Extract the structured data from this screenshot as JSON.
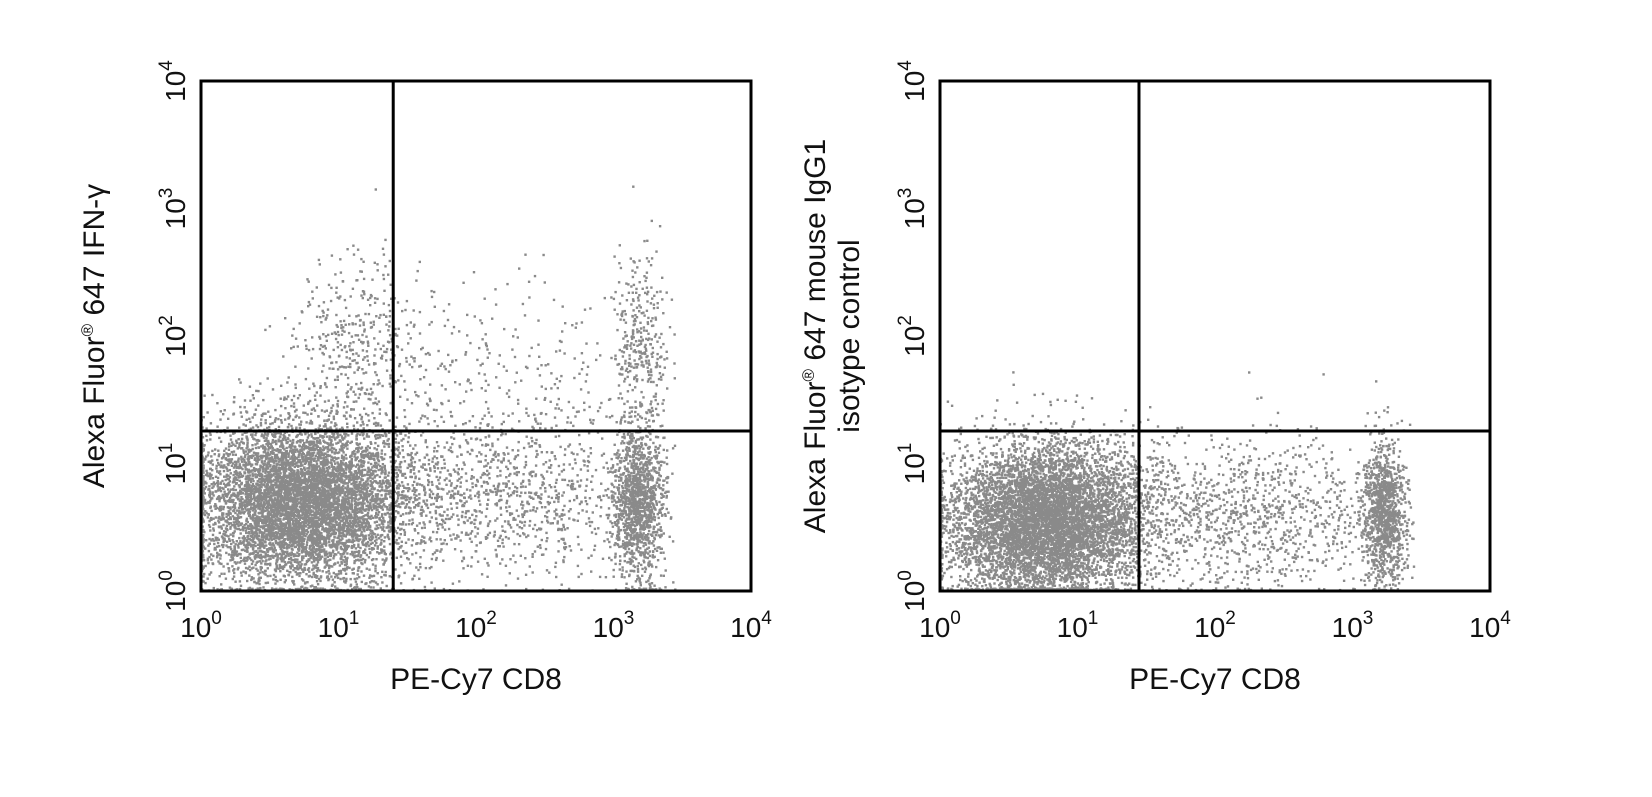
{
  "chart_data": [
    {
      "type": "scatter",
      "xlabel": "PE-Cy7 CD8",
      "ylabel_lines": [
        [
          {
            "text": "Alexa Fluor"
          },
          {
            "sup": "®"
          },
          {
            "text": " 647 IFN-γ"
          }
        ]
      ],
      "x_scale": "log",
      "y_scale": "log",
      "xlim": [
        1,
        10000
      ],
      "ylim": [
        1,
        10000
      ],
      "x_ticks": [
        {
          "base": "10",
          "exp": "0"
        },
        {
          "base": "10",
          "exp": "1"
        },
        {
          "base": "10",
          "exp": "2"
        },
        {
          "base": "10",
          "exp": "3"
        },
        {
          "base": "10",
          "exp": "4"
        }
      ],
      "y_ticks": [
        {
          "base": "10",
          "exp": "0"
        },
        {
          "base": "10",
          "exp": "1"
        },
        {
          "base": "10",
          "exp": "2"
        },
        {
          "base": "10",
          "exp": "3"
        },
        {
          "base": "10",
          "exp": "4"
        }
      ],
      "gate": {
        "x": 25,
        "y": 18
      },
      "grid": false,
      "point_color": "#8a8a8a",
      "populations": [
        {
          "center": [
            5.5,
            5
          ],
          "spread": [
            0.38,
            0.32
          ],
          "count": 7000
        },
        {
          "center": [
            1500,
            5
          ],
          "spread": [
            0.09,
            0.3
          ],
          "count": 1300
        },
        {
          "center": [
            150,
            6
          ],
          "spread": [
            0.6,
            0.35
          ],
          "count": 1200
        },
        {
          "center": [
            14,
            90
          ],
          "spread": [
            0.22,
            0.33
          ],
          "count": 380
        },
        {
          "center": [
            1600,
            90
          ],
          "spread": [
            0.1,
            0.35
          ],
          "count": 300
        },
        {
          "center": [
            200,
            70
          ],
          "spread": [
            0.6,
            0.3
          ],
          "count": 220
        }
      ]
    },
    {
      "type": "scatter",
      "xlabel": "PE-Cy7 CD8",
      "ylabel_lines": [
        [
          {
            "text": "Alexa Fluor"
          },
          {
            "sup": "®"
          },
          {
            "text": " 647 mouse IgG1"
          }
        ],
        [
          {
            "text": "isotype control"
          }
        ]
      ],
      "x_scale": "log",
      "y_scale": "log",
      "xlim": [
        1,
        10000
      ],
      "ylim": [
        1,
        10000
      ],
      "x_ticks": [
        {
          "base": "10",
          "exp": "0"
        },
        {
          "base": "10",
          "exp": "1"
        },
        {
          "base": "10",
          "exp": "2"
        },
        {
          "base": "10",
          "exp": "3"
        },
        {
          "base": "10",
          "exp": "4"
        }
      ],
      "y_ticks": [
        {
          "base": "10",
          "exp": "0"
        },
        {
          "base": "10",
          "exp": "1"
        },
        {
          "base": "10",
          "exp": "2"
        },
        {
          "base": "10",
          "exp": "3"
        },
        {
          "base": "10",
          "exp": "4"
        }
      ],
      "gate": {
        "x": 28,
        "y": 18
      },
      "grid": false,
      "point_color": "#8a8a8a",
      "populations": [
        {
          "center": [
            6,
            3.5
          ],
          "spread": [
            0.36,
            0.3
          ],
          "count": 7200
        },
        {
          "center": [
            1700,
            4
          ],
          "spread": [
            0.08,
            0.28
          ],
          "count": 1100
        },
        {
          "center": [
            200,
            4
          ],
          "spread": [
            0.55,
            0.3
          ],
          "count": 1100
        }
      ]
    }
  ]
}
